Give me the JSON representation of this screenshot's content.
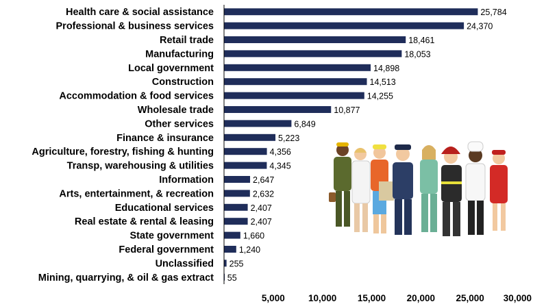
{
  "chart_data": {
    "type": "bar",
    "orientation": "horizontal",
    "categories": [
      "Health care & social assistance",
      "Professional & business services",
      "Retail trade",
      "Manufacturing",
      "Local government",
      "Construction",
      "Accommodation & food services",
      "Wholesale trade",
      "Other services",
      "Finance & insurance",
      "Agriculture, forestry, fishing & hunting",
      "Transp, warehousing & utilities",
      "Information",
      "Arts, entertainment, & recreation",
      "Educational services",
      "Real estate & rental & leasing",
      "State government",
      "Federal government",
      "Unclassified",
      "Mining, quarrying, & oil & gas extract"
    ],
    "values": [
      25784,
      24370,
      18461,
      18053,
      14898,
      14513,
      14255,
      10877,
      6849,
      5223,
      4356,
      4345,
      2647,
      2632,
      2407,
      2407,
      1660,
      1240,
      255,
      55
    ],
    "value_labels": [
      "25,784",
      "24,370",
      "18,461",
      "18,053",
      "14,898",
      "14,513",
      "14,255",
      "10,877",
      "6,849",
      "5,223",
      "4,356",
      "4,345",
      "2,647",
      "2,632",
      "2,407",
      "2,407",
      "1,660",
      "1,240",
      "255",
      "55"
    ],
    "xlim": [
      0,
      30000
    ],
    "x_ticks": [
      5000,
      10000,
      15000,
      20000,
      25000,
      30000
    ],
    "x_tick_labels": [
      "5,000",
      "10,000",
      "15,000",
      "20,000",
      "25,000",
      "30,000"
    ],
    "title": "",
    "xlabel": "",
    "ylabel": "",
    "grid": false,
    "bar_color": "#1f2d5a"
  },
  "illustration": {
    "description_icon": "children-in-uniforms-illustration"
  }
}
